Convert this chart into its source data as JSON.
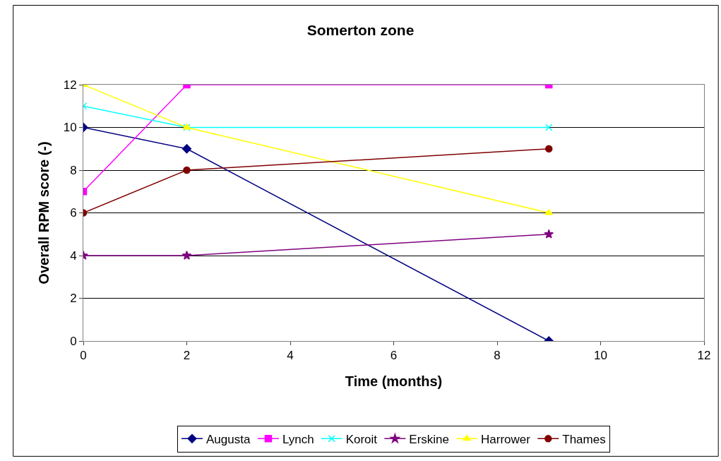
{
  "chart_data": {
    "type": "line",
    "title": "Somerton zone",
    "xlabel": "Time (months)",
    "ylabel": "Overall RPM score (-)",
    "x": [
      0,
      2,
      9
    ],
    "xlim": [
      0,
      12
    ],
    "xticks": [
      0,
      2,
      4,
      6,
      8,
      10,
      12
    ],
    "ylim": [
      0,
      12
    ],
    "yticks": [
      0,
      2,
      4,
      6,
      8,
      10,
      12
    ],
    "grid": "y",
    "legend": "bottom",
    "line_style": "solid",
    "series": [
      {
        "name": "Augusta",
        "color": "#000080",
        "marker": "diamond",
        "values": [
          10,
          9,
          0
        ]
      },
      {
        "name": "Lynch",
        "color": "#ff00ff",
        "marker": "square",
        "values": [
          7,
          12,
          12
        ]
      },
      {
        "name": "Koroit",
        "color": "#00ffff",
        "marker": "cross",
        "values": [
          11,
          10,
          10
        ]
      },
      {
        "name": "Erskine",
        "color": "#800080",
        "marker": "star",
        "values": [
          4,
          4,
          5
        ]
      },
      {
        "name": "Harrower",
        "color": "#ffff00",
        "marker": "triangle",
        "values": [
          12,
          10,
          6
        ]
      },
      {
        "name": "Thames",
        "color": "#800000",
        "marker": "circle",
        "values": [
          6,
          8,
          9
        ]
      }
    ]
  }
}
